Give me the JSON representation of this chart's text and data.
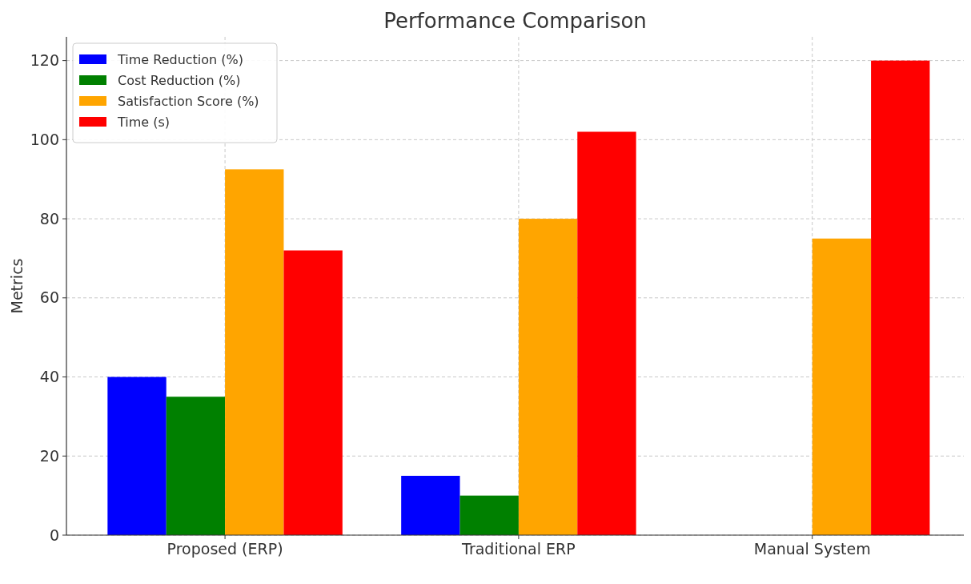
{
  "chart_data": {
    "type": "bar",
    "title": "Performance Comparison",
    "ylabel": "Metrics",
    "categories": [
      "Proposed (ERP)",
      "Traditional ERP",
      "Manual System"
    ],
    "series": [
      {
        "name": "Time Reduction (%)",
        "color": "#0000ff",
        "values": [
          40,
          15,
          0
        ]
      },
      {
        "name": "Cost Reduction (%)",
        "color": "#008000",
        "values": [
          35,
          10,
          0
        ]
      },
      {
        "name": "Satisfaction Score (%)",
        "color": "#ffa500",
        "values": [
          92.5,
          80,
          75
        ]
      },
      {
        "name": "Time (s)",
        "color": "#ff0000",
        "values": [
          72,
          102,
          120
        ]
      }
    ],
    "ylim": [
      0,
      126
    ],
    "yticks": [
      0,
      20,
      40,
      60,
      80,
      100,
      120
    ],
    "grid": true,
    "legend": "top left"
  }
}
